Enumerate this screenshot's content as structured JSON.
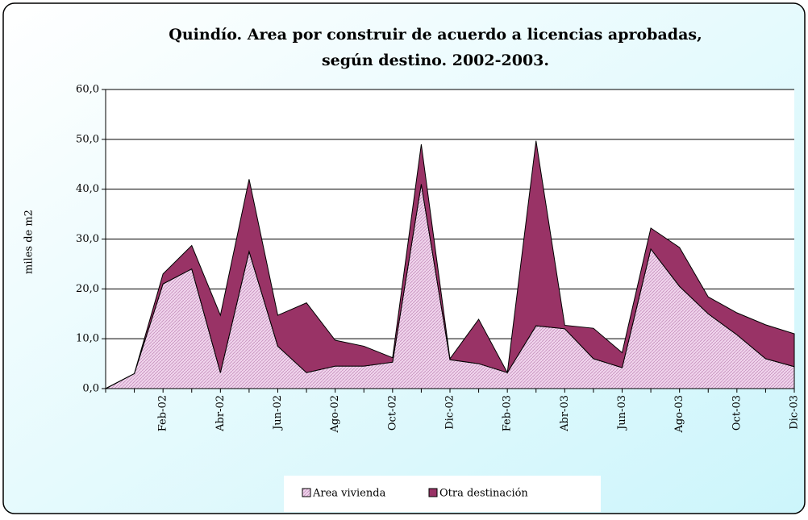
{
  "chart_data": {
    "type": "area",
    "stacked": true,
    "title": "Quindío. Area por construir de acuerdo a licencias aprobadas,",
    "subtitle": "según destino. 2002-2003.",
    "y_label": "miles de m2",
    "categories": [
      null,
      null,
      "Feb-02",
      null,
      "Abr-02",
      null,
      "Jun-02",
      null,
      "Ago-02",
      null,
      "Oct-02",
      null,
      "Dic-02",
      null,
      "Feb-03",
      null,
      "Abr-03",
      null,
      "Jun-03",
      null,
      "Ago-03",
      null,
      "Oct-03",
      null,
      "Dic-03"
    ],
    "series": [
      {
        "name": "Area  vivienda",
        "color": "#f0d4ec",
        "values": [
          0,
          3,
          21,
          24,
          3.2,
          27.5,
          8.5,
          3.2,
          4.5,
          4.5,
          5.3,
          41,
          5.8,
          5.0,
          3.2,
          12.6,
          12.0,
          6.0,
          4.2,
          28,
          20.5,
          15,
          10.8,
          6.0,
          4.4
        ]
      },
      {
        "name": "Otra destinación",
        "color": "#993366",
        "values": [
          0,
          0,
          2,
          4.7,
          11.5,
          14.5,
          6.2,
          14,
          5.2,
          4,
          0.9,
          8,
          0.2,
          8.9,
          0,
          37.1,
          0.7,
          6.1,
          3,
          4.2,
          7.8,
          3.4,
          4.4,
          6.8,
          6.6
        ]
      }
    ],
    "ylim": [
      0,
      60
    ],
    "yticks": [
      {
        "value": 0,
        "label": "0,0"
      },
      {
        "value": 10,
        "label": "10,0"
      },
      {
        "value": 20,
        "label": "20,0"
      },
      {
        "value": 30,
        "label": "30,0"
      },
      {
        "value": 40,
        "label": "40,0"
      },
      {
        "value": 50,
        "label": "50,0"
      },
      {
        "value": 60,
        "label": "60,0"
      }
    ],
    "grid": true,
    "legend": "bottom"
  }
}
